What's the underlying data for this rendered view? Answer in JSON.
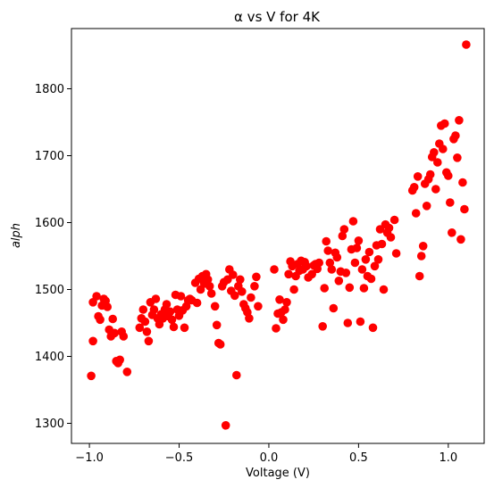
{
  "chart_data": {
    "type": "scatter",
    "title": "α vs V for 4K",
    "xlabel": "Voltage (V)",
    "ylabel": "alph",
    "xlim": [
      -1.1,
      1.2
    ],
    "ylim": [
      1270,
      1890
    ],
    "xticks": [
      -1.0,
      -0.5,
      0.0,
      0.5,
      1.0
    ],
    "xtick_labels": [
      "−1.0",
      "−0.5",
      "0.0",
      "0.5",
      "1.0"
    ],
    "yticks": [
      1300,
      1400,
      1500,
      1600,
      1700,
      1800
    ],
    "ytick_labels": [
      "1300",
      "1400",
      "1500",
      "1600",
      "1700",
      "1800"
    ],
    "grid": false,
    "marker_color": "#ff0000",
    "series": [
      {
        "points": [
          [
            -0.99,
            1371
          ],
          [
            -0.98,
            1423
          ],
          [
            -0.98,
            1481
          ],
          [
            -0.96,
            1490
          ],
          [
            -0.95,
            1460
          ],
          [
            -0.94,
            1455
          ],
          [
            -0.93,
            1476
          ],
          [
            -0.92,
            1486
          ],
          [
            -0.91,
            1483
          ],
          [
            -0.9,
            1474
          ],
          [
            -0.89,
            1440
          ],
          [
            -0.88,
            1430
          ],
          [
            -0.87,
            1456
          ],
          [
            -0.86,
            1435
          ],
          [
            -0.85,
            1393
          ],
          [
            -0.84,
            1390
          ],
          [
            -0.83,
            1395
          ],
          [
            -0.82,
            1437
          ],
          [
            -0.81,
            1430
          ],
          [
            -0.79,
            1377
          ],
          [
            -0.72,
            1443
          ],
          [
            -0.71,
            1457
          ],
          [
            -0.7,
            1470
          ],
          [
            -0.69,
            1452
          ],
          [
            -0.68,
            1437
          ],
          [
            -0.67,
            1423
          ],
          [
            -0.66,
            1481
          ],
          [
            -0.65,
            1462
          ],
          [
            -0.64,
            1470
          ],
          [
            -0.63,
            1486
          ],
          [
            -0.62,
            1457
          ],
          [
            -0.61,
            1448
          ],
          [
            -0.6,
            1463
          ],
          [
            -0.59,
            1457
          ],
          [
            -0.58,
            1470
          ],
          [
            -0.57,
            1478
          ],
          [
            -0.56,
            1460
          ],
          [
            -0.55,
            1467
          ],
          [
            -0.54,
            1455
          ],
          [
            -0.53,
            1444
          ],
          [
            -0.52,
            1492
          ],
          [
            -0.51,
            1470
          ],
          [
            -0.5,
            1461
          ],
          [
            -0.49,
            1490
          ],
          [
            -0.48,
            1469
          ],
          [
            -0.47,
            1443
          ],
          [
            -0.46,
            1475
          ],
          [
            -0.45,
            1484
          ],
          [
            -0.44,
            1486
          ],
          [
            -0.43,
            1484
          ],
          [
            -0.41,
            1510
          ],
          [
            -0.4,
            1480
          ],
          [
            -0.39,
            1516
          ],
          [
            -0.38,
            1500
          ],
          [
            -0.37,
            1520
          ],
          [
            -0.36,
            1509
          ],
          [
            -0.35,
            1523
          ],
          [
            -0.34,
            1515
          ],
          [
            -0.33,
            1505
          ],
          [
            -0.32,
            1494
          ],
          [
            -0.3,
            1475
          ],
          [
            -0.29,
            1447
          ],
          [
            -0.28,
            1420
          ],
          [
            -0.27,
            1418
          ],
          [
            -0.26,
            1505
          ],
          [
            -0.25,
            1511
          ],
          [
            -0.24,
            1297
          ],
          [
            -0.23,
            1515
          ],
          [
            -0.22,
            1530
          ],
          [
            -0.21,
            1498
          ],
          [
            -0.2,
            1522
          ],
          [
            -0.19,
            1491
          ],
          [
            -0.18,
            1372
          ],
          [
            -0.17,
            1505
          ],
          [
            -0.16,
            1515
          ],
          [
            -0.15,
            1497
          ],
          [
            -0.14,
            1478
          ],
          [
            -0.13,
            1472
          ],
          [
            -0.12,
            1466
          ],
          [
            -0.11,
            1457
          ],
          [
            -0.1,
            1488
          ],
          [
            -0.08,
            1505
          ],
          [
            -0.07,
            1519
          ],
          [
            -0.06,
            1475
          ],
          [
            0.03,
            1530
          ],
          [
            0.04,
            1442
          ],
          [
            0.05,
            1464
          ],
          [
            0.06,
            1485
          ],
          [
            0.07,
            1466
          ],
          [
            0.08,
            1455
          ],
          [
            0.09,
            1470
          ],
          [
            0.1,
            1481
          ],
          [
            0.11,
            1523
          ],
          [
            0.12,
            1542
          ],
          [
            0.13,
            1535
          ],
          [
            0.14,
            1500
          ],
          [
            0.15,
            1520
          ],
          [
            0.16,
            1538
          ],
          [
            0.17,
            1528
          ],
          [
            0.18,
            1543
          ],
          [
            0.19,
            1530
          ],
          [
            0.2,
            1541
          ],
          [
            0.21,
            1535
          ],
          [
            0.22,
            1518
          ],
          [
            0.24,
            1523
          ],
          [
            0.25,
            1536
          ],
          [
            0.26,
            1538
          ],
          [
            0.27,
            1531
          ],
          [
            0.28,
            1540
          ],
          [
            0.3,
            1445
          ],
          [
            0.31,
            1502
          ],
          [
            0.32,
            1572
          ],
          [
            0.33,
            1558
          ],
          [
            0.34,
            1540
          ],
          [
            0.35,
            1530
          ],
          [
            0.36,
            1472
          ],
          [
            0.37,
            1555
          ],
          [
            0.38,
            1548
          ],
          [
            0.39,
            1513
          ],
          [
            0.4,
            1527
          ],
          [
            0.41,
            1580
          ],
          [
            0.42,
            1590
          ],
          [
            0.43,
            1525
          ],
          [
            0.44,
            1450
          ],
          [
            0.45,
            1503
          ],
          [
            0.46,
            1560
          ],
          [
            0.47,
            1602
          ],
          [
            0.48,
            1540
          ],
          [
            0.49,
            1562
          ],
          [
            0.5,
            1573
          ],
          [
            0.51,
            1452
          ],
          [
            0.52,
            1530
          ],
          [
            0.53,
            1502
          ],
          [
            0.54,
            1545
          ],
          [
            0.55,
            1520
          ],
          [
            0.56,
            1556
          ],
          [
            0.57,
            1516
          ],
          [
            0.58,
            1443
          ],
          [
            0.59,
            1535
          ],
          [
            0.6,
            1566
          ],
          [
            0.61,
            1545
          ],
          [
            0.62,
            1590
          ],
          [
            0.63,
            1568
          ],
          [
            0.64,
            1500
          ],
          [
            0.65,
            1597
          ],
          [
            0.66,
            1585
          ],
          [
            0.67,
            1592
          ],
          [
            0.68,
            1578
          ],
          [
            0.7,
            1604
          ],
          [
            0.71,
            1554
          ],
          [
            0.8,
            1648
          ],
          [
            0.81,
            1653
          ],
          [
            0.82,
            1614
          ],
          [
            0.83,
            1669
          ],
          [
            0.84,
            1520
          ],
          [
            0.85,
            1550
          ],
          [
            0.86,
            1565
          ],
          [
            0.87,
            1658
          ],
          [
            0.88,
            1625
          ],
          [
            0.89,
            1665
          ],
          [
            0.9,
            1672
          ],
          [
            0.91,
            1698
          ],
          [
            0.92,
            1705
          ],
          [
            0.93,
            1650
          ],
          [
            0.94,
            1690
          ],
          [
            0.95,
            1718
          ],
          [
            0.96,
            1745
          ],
          [
            0.97,
            1710
          ],
          [
            0.98,
            1748
          ],
          [
            0.99,
            1675
          ],
          [
            1.0,
            1670
          ],
          [
            1.01,
            1630
          ],
          [
            1.02,
            1585
          ],
          [
            1.03,
            1725
          ],
          [
            1.04,
            1730
          ],
          [
            1.05,
            1697
          ],
          [
            1.06,
            1753
          ],
          [
            1.07,
            1575
          ],
          [
            1.08,
            1660
          ],
          [
            1.09,
            1620
          ],
          [
            1.1,
            1866
          ]
        ]
      }
    ]
  }
}
